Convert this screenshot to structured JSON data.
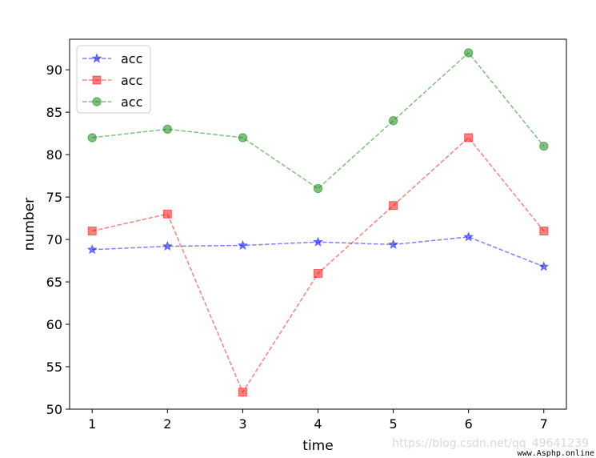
{
  "chart_data": {
    "type": "line",
    "xlabel": "time",
    "ylabel": "number",
    "x": [
      1,
      2,
      3,
      4,
      5,
      6,
      7
    ],
    "xlim": [
      0.7,
      7.3
    ],
    "ylim": [
      50,
      93.6
    ],
    "xticks": [
      1,
      2,
      3,
      4,
      5,
      6,
      7
    ],
    "yticks": [
      50,
      55,
      60,
      65,
      70,
      75,
      80,
      85,
      90
    ],
    "grid": false,
    "legend_position": "top-left",
    "series": [
      {
        "name": "acc",
        "color": "#0000ff",
        "marker": "star",
        "values": [
          68.8,
          69.2,
          69.3,
          69.7,
          69.4,
          70.3,
          66.8
        ]
      },
      {
        "name": "acc",
        "color": "#ff0000",
        "marker": "square",
        "values": [
          71,
          73,
          52,
          66,
          74,
          82,
          71
        ]
      },
      {
        "name": "acc",
        "color": "#008000",
        "marker": "circle",
        "values": [
          82,
          83,
          82,
          76,
          84,
          92,
          81
        ]
      }
    ]
  },
  "watermark": "https://blog.csdn.net/qq_49641239",
  "site_label": "www.Asphp.online"
}
